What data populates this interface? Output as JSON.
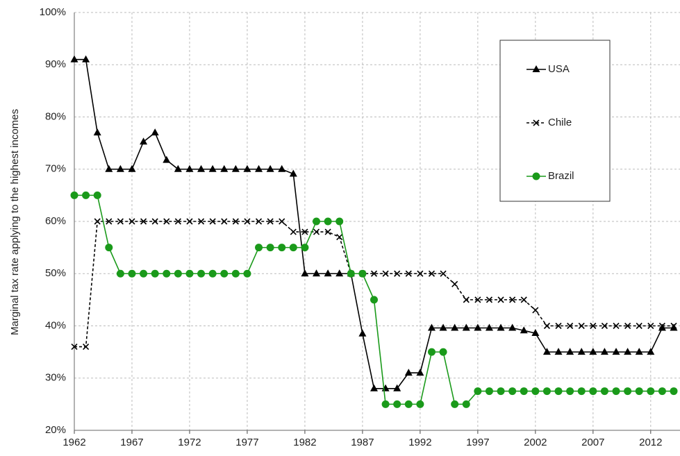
{
  "chart_data": {
    "type": "line",
    "ylabel": "Marginal tax rate applying to the highest incomes",
    "x": [
      1962,
      1963,
      1964,
      1965,
      1966,
      1967,
      1968,
      1969,
      1970,
      1971,
      1972,
      1973,
      1974,
      1975,
      1976,
      1977,
      1978,
      1979,
      1980,
      1981,
      1982,
      1983,
      1984,
      1985,
      1986,
      1987,
      1988,
      1989,
      1990,
      1991,
      1992,
      1993,
      1994,
      1995,
      1996,
      1997,
      1998,
      1999,
      2000,
      2001,
      2002,
      2003,
      2004,
      2005,
      2006,
      2007,
      2008,
      2009,
      2010,
      2011,
      2012,
      2013,
      2014
    ],
    "series": [
      {
        "name": "USA",
        "color": "#000000",
        "marker": "triangle",
        "linestyle": "solid",
        "values": [
          91,
          91,
          77,
          70,
          70,
          70,
          75.25,
          77,
          71.75,
          70,
          70,
          70,
          70,
          70,
          70,
          70,
          70,
          70,
          70,
          69.1,
          50,
          50,
          50,
          50,
          50,
          38.5,
          28,
          28,
          28,
          31,
          31,
          39.6,
          39.6,
          39.6,
          39.6,
          39.6,
          39.6,
          39.6,
          39.6,
          39.1,
          38.6,
          35,
          35,
          35,
          35,
          35,
          35,
          35,
          35,
          35,
          35,
          39.6,
          39.6
        ]
      },
      {
        "name": "Chile",
        "color": "#000000",
        "marker": "x",
        "linestyle": "dashed",
        "values": [
          36,
          36,
          60,
          60,
          60,
          60,
          60,
          60,
          60,
          60,
          60,
          60,
          60,
          60,
          60,
          60,
          60,
          60,
          60,
          58,
          58,
          58,
          58,
          57,
          50,
          50,
          50,
          50,
          50,
          50,
          50,
          50,
          50,
          48,
          45,
          45,
          45,
          45,
          45,
          45,
          43,
          40,
          40,
          40,
          40,
          40,
          40,
          40,
          40,
          40,
          40,
          40,
          40
        ]
      },
      {
        "name": "Brazil",
        "color": "#1a9a1a",
        "marker": "circle",
        "linestyle": "solid",
        "values": [
          65,
          65,
          65,
          55,
          50,
          50,
          50,
          50,
          50,
          50,
          50,
          50,
          50,
          50,
          50,
          50,
          55,
          55,
          55,
          55,
          55,
          60,
          60,
          60,
          50,
          50,
          45,
          25,
          25,
          25,
          25,
          35,
          35,
          25,
          25,
          27.5,
          27.5,
          27.5,
          27.5,
          27.5,
          27.5,
          27.5,
          27.5,
          27.5,
          27.5,
          27.5,
          27.5,
          27.5,
          27.5,
          27.5,
          27.5,
          27.5,
          27.5
        ]
      }
    ],
    "xlim": [
      1962,
      2014
    ],
    "ylim": [
      20,
      100
    ],
    "xticks": [
      1962,
      1967,
      1972,
      1977,
      1982,
      1987,
      1992,
      1997,
      2002,
      2007,
      2012
    ],
    "yticks": [
      {
        "value": 20,
        "label": "20%"
      },
      {
        "value": 30,
        "label": "30%"
      },
      {
        "value": 40,
        "label": "40%"
      },
      {
        "value": 50,
        "label": "50%"
      },
      {
        "value": 60,
        "label": "60%"
      },
      {
        "value": 70,
        "label": "70%"
      },
      {
        "value": 80,
        "label": "80%"
      },
      {
        "value": 90,
        "label": "90%"
      },
      {
        "value": 100,
        "label": "100%"
      }
    ],
    "grid": true,
    "legend": "upper right"
  }
}
